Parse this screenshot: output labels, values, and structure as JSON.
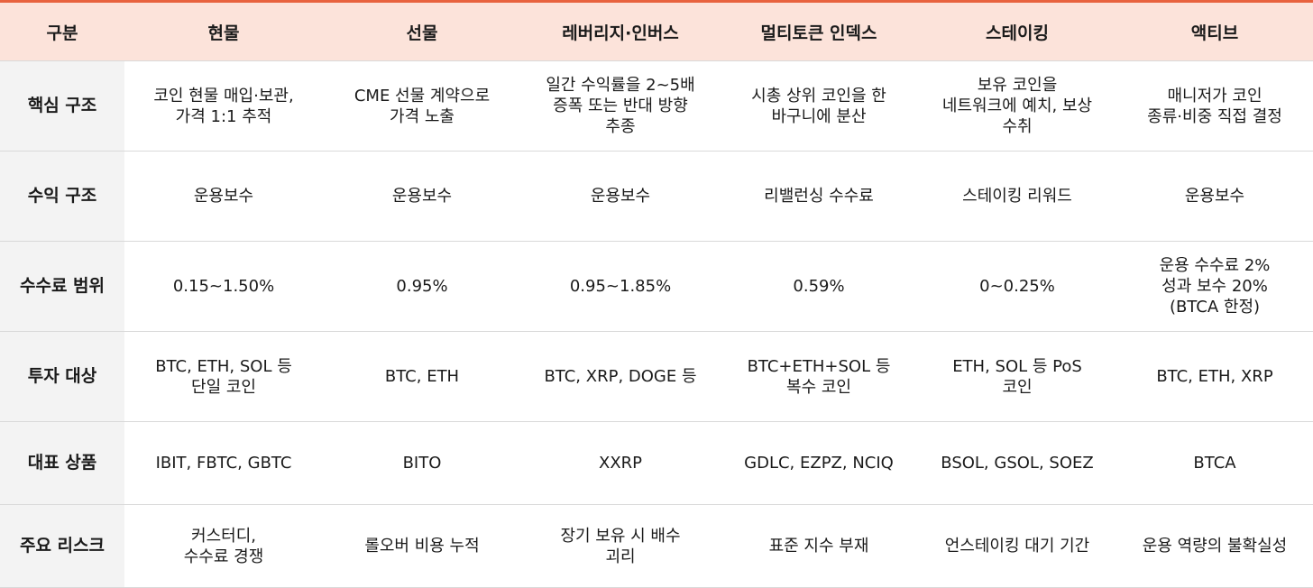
{
  "table": {
    "headers": [
      "구분",
      "현물",
      "선물",
      "레버리지·인버스",
      "멀티토큰 인덱스",
      "스테이킹",
      "액티브"
    ],
    "rows": [
      {
        "label": "핵심 구조",
        "cells": [
          "코인 현물 매입·보관,\n가격 1:1 추적",
          "CME 선물 계약으로\n가격 노출",
          "일간 수익률을 2~5배\n증폭 또는 반대 방향\n추종",
          "시총 상위 코인을 한\n바구니에 분산",
          "보유 코인을\n네트워크에 예치, 보상\n수취",
          "매니저가 코인\n종류·비중 직접 결정"
        ]
      },
      {
        "label": "수익 구조",
        "cells": [
          "운용보수",
          "운용보수",
          "운용보수",
          "리밸런싱 수수료",
          "스테이킹 리워드",
          "운용보수"
        ]
      },
      {
        "label": "수수료 범위",
        "cells": [
          "0.15~1.50%",
          "0.95%",
          "0.95~1.85%",
          "0.59%",
          "0~0.25%",
          "운용 수수료 2%\n성과 보수 20%\n(BTCA 한정)"
        ]
      },
      {
        "label": "투자 대상",
        "cells": [
          "BTC, ETH, SOL 등\n단일 코인",
          "BTC, ETH",
          "BTC, XRP, DOGE 등",
          "BTC+ETH+SOL 등\n복수 코인",
          "ETH, SOL 등 PoS\n코인",
          "BTC, ETH, XRP"
        ]
      },
      {
        "label": "대표 상품",
        "cells": [
          "IBIT, FBTC, GBTC",
          "BITO",
          "XXRP",
          "GDLC, EZPZ, NCIQ",
          "BSOL, GSOL, SOEZ",
          "BTCA"
        ]
      },
      {
        "label": "주요 리스크",
        "cells": [
          "커스터디,\n수수료 경쟁",
          "롤오버 비용 누적",
          "장기 보유 시 배수\n괴리",
          "표준 지수 부재",
          "언스테이킹 대기 기간",
          "운용 역량의 불확실성"
        ]
      }
    ]
  },
  "colors": {
    "header_bg": "#fce3da",
    "header_top_border": "#e8623e",
    "row_header_bg": "#f3f3f3",
    "grid_line": "#d9d9d9"
  }
}
